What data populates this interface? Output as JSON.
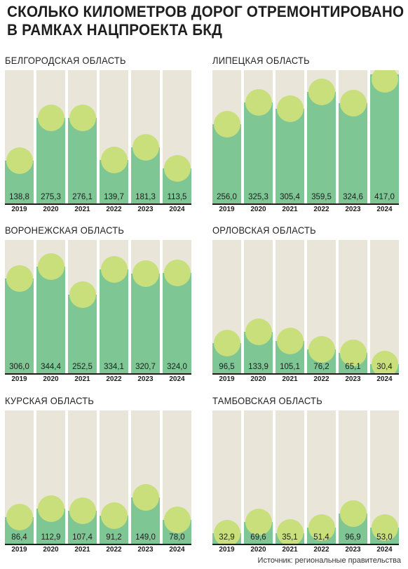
{
  "title": {
    "line1": "СКОЛЬКО КИЛОМЕТРОВ ДОРОГ ОТРЕМОНТИРОВАНО",
    "line2": "В РАМКАХ НАЦПРОЕКТА БКД"
  },
  "source": "Источник: региональные правительства",
  "colors": {
    "background_column": "#e9e5d9",
    "bar": "#7ec694",
    "bubble": "#c8df7b",
    "axis": "#1e1e1e"
  },
  "chart_data": [
    {
      "type": "bar",
      "title": "БЕЛГОРОДСКАЯ ОБЛАСТЬ",
      "categories": [
        "2019",
        "2020",
        "2021",
        "2022",
        "2023",
        "2024"
      ],
      "values": [
        138.8,
        275.3,
        276.1,
        139.7,
        181.3,
        113.5
      ],
      "value_labels": [
        "138,8",
        "275,3",
        "276,1",
        "139,7",
        "181,3",
        "113,5"
      ],
      "ylim": [
        0,
        430
      ]
    },
    {
      "type": "bar",
      "title": "ЛИПЕЦКАЯ ОБЛАСТЬ",
      "categories": [
        "2019",
        "2020",
        "2021",
        "2022",
        "2023",
        "2024"
      ],
      "values": [
        256.0,
        325.3,
        305.4,
        359.5,
        324.6,
        417.0
      ],
      "value_labels": [
        "256,0",
        "325,3",
        "305,4",
        "359,5",
        "324,6",
        "417,0"
      ],
      "ylim": [
        0,
        430
      ]
    },
    {
      "type": "bar",
      "title": "ВОРОНЕЖСКАЯ ОБЛАСТЬ",
      "categories": [
        "2019",
        "2020",
        "2021",
        "2022",
        "2023",
        "2024"
      ],
      "values": [
        306.0,
        344.4,
        252.5,
        334.1,
        320.7,
        324.0
      ],
      "value_labels": [
        "306,0",
        "344,4",
        "252,5",
        "334,1",
        "320,7",
        "324,0"
      ],
      "ylim": [
        0,
        430
      ]
    },
    {
      "type": "bar",
      "title": "ОРЛОВСКАЯ ОБЛАСТЬ",
      "categories": [
        "2019",
        "2020",
        "2021",
        "2022",
        "2023",
        "2024"
      ],
      "values": [
        96.5,
        133.9,
        105.1,
        76.2,
        65.1,
        30.4
      ],
      "value_labels": [
        "96,5",
        "133,9",
        "105,1",
        "76,2",
        "65,1",
        "30,4"
      ],
      "ylim": [
        0,
        430
      ]
    },
    {
      "type": "bar",
      "title": "КУРСКАЯ ОБЛАСТЬ",
      "categories": [
        "2019",
        "2020",
        "2021",
        "2022",
        "2023",
        "2024"
      ],
      "values": [
        86.4,
        112.9,
        107.4,
        91.2,
        149.0,
        78.0
      ],
      "value_labels": [
        "86,4",
        "112,9",
        "107,4",
        "91,2",
        "149,0",
        "78,0"
      ],
      "ylim": [
        0,
        430
      ]
    },
    {
      "type": "bar",
      "title": "ТАМБОВСКАЯ ОБЛАСТЬ",
      "categories": [
        "2019",
        "2020",
        "2021",
        "2022",
        "2023",
        "2024"
      ],
      "values": [
        32.9,
        69.6,
        35.1,
        51.4,
        96.9,
        53.0
      ],
      "value_labels": [
        "32,9",
        "69,6",
        "35,1",
        "51,4",
        "96,9",
        "53,0"
      ],
      "ylim": [
        0,
        430
      ]
    }
  ]
}
